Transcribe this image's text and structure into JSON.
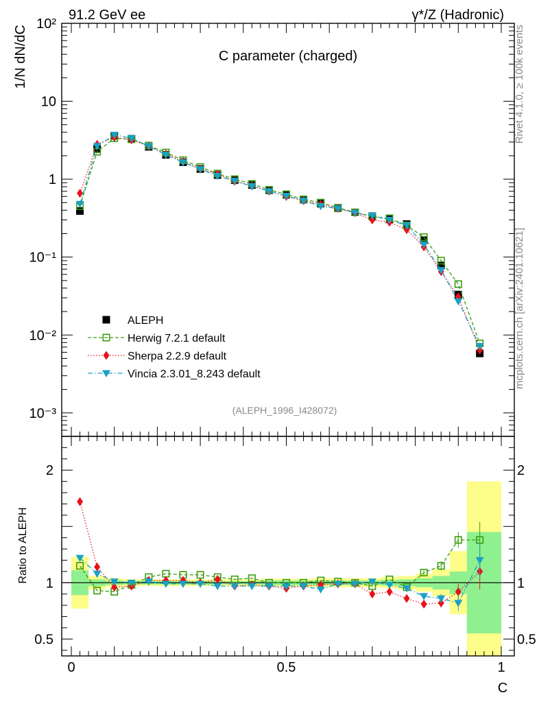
{
  "header": {
    "energy_label": "91.2 GeV ee",
    "process_label": "γ*/Z (Hadronic)"
  },
  "side_labels": {
    "rivet": "Rivet 4.1.0, ≥ 100k events",
    "mcplots": "mcplots.cern.ch [arXiv:2401.10621]"
  },
  "chart_data": {
    "type": "line",
    "title": "C parameter (charged)",
    "analysis_tag": "(ALEPH_1996_I428072)",
    "xlabel": "C",
    "ylabel_main": "1/N  dN/dC",
    "ylabel_ratio": "Ratio to ALEPH",
    "xlim": [
      0,
      1
    ],
    "ylim_main": [
      0.0005,
      100
    ],
    "ylim_ratio": [
      0.35,
      2.3
    ],
    "x_ticks": [
      "0",
      "0.5",
      "1"
    ],
    "y_ticks_main": [
      "10⁻³",
      "10⁻²",
      "10⁻¹",
      "1",
      "10",
      "10²"
    ],
    "y_ticks_main_values": [
      0.001,
      0.01,
      0.1,
      1,
      10,
      100
    ],
    "y_ticks_ratio": [
      "0.5",
      "1",
      "2"
    ],
    "y_ticks_ratio_values": [
      0.5,
      1,
      2
    ],
    "x": [
      0.02,
      0.06,
      0.1,
      0.14,
      0.18,
      0.22,
      0.26,
      0.3,
      0.34,
      0.38,
      0.42,
      0.46,
      0.5,
      0.54,
      0.58,
      0.62,
      0.66,
      0.7,
      0.74,
      0.78,
      0.82,
      0.86,
      0.9,
      0.95
    ],
    "x_edges": [
      0,
      0.04,
      0.08,
      0.12,
      0.16,
      0.2,
      0.24,
      0.28,
      0.32,
      0.36,
      0.4,
      0.44,
      0.48,
      0.52,
      0.56,
      0.6,
      0.64,
      0.68,
      0.72,
      0.76,
      0.8,
      0.84,
      0.88,
      0.92,
      1.0
    ],
    "band_inner": [
      0.11,
      0.03,
      0.02,
      0.015,
      0.015,
      0.015,
      0.015,
      0.015,
      0.015,
      0.015,
      0.015,
      0.02,
      0.02,
      0.02,
      0.02,
      0.02,
      0.02,
      0.02,
      0.025,
      0.03,
      0.04,
      0.06,
      0.1,
      0.45
    ],
    "band_outer": [
      0.23,
      0.06,
      0.04,
      0.03,
      0.03,
      0.03,
      0.03,
      0.03,
      0.03,
      0.03,
      0.03,
      0.035,
      0.035,
      0.035,
      0.04,
      0.04,
      0.04,
      0.04,
      0.05,
      0.06,
      0.08,
      0.12,
      0.28,
      0.9
    ],
    "series": [
      {
        "name": "ALEPH",
        "color": "#000000",
        "marker": "square-filled",
        "values": [
          0.39,
          2.45,
          3.6,
          3.3,
          2.6,
          2.05,
          1.65,
          1.35,
          1.13,
          0.97,
          0.84,
          0.72,
          0.63,
          0.545,
          0.485,
          0.425,
          0.375,
          0.335,
          0.305,
          0.265,
          0.165,
          0.078,
          0.033,
          0.0058
        ]
      },
      {
        "name": "Herwig 7.2.1 default",
        "color": "#3a9c10",
        "marker": "square-open",
        "dash": "5,3",
        "values": [
          0.45,
          2.25,
          3.35,
          3.25,
          2.7,
          2.2,
          1.75,
          1.43,
          1.18,
          1.0,
          0.87,
          0.73,
          0.64,
          0.55,
          0.5,
          0.43,
          0.375,
          0.33,
          0.315,
          0.255,
          0.18,
          0.09,
          0.045,
          0.0078
        ]
      },
      {
        "name": "Sherpa 2.2.9 default",
        "color": "#e8121b",
        "marker": "diamond-filled",
        "dash": "1.5,2.5",
        "values": [
          0.66,
          2.8,
          3.45,
          3.2,
          2.65,
          2.1,
          1.68,
          1.35,
          1.16,
          0.94,
          0.82,
          0.7,
          0.6,
          0.53,
          0.475,
          0.42,
          0.37,
          0.3,
          0.28,
          0.225,
          0.135,
          0.065,
          0.031,
          0.0064
        ]
      },
      {
        "name": "Vincia 2.3.01_8.243 default",
        "color": "#1aa1c4",
        "marker": "triangle-down-filled",
        "dash": "7,3,1.5,3",
        "values": [
          0.48,
          2.65,
          3.7,
          3.35,
          2.65,
          2.05,
          1.64,
          1.34,
          1.1,
          0.95,
          0.81,
          0.7,
          0.61,
          0.53,
          0.45,
          0.42,
          0.37,
          0.34,
          0.3,
          0.255,
          0.145,
          0.068,
          0.027,
          0.0072
        ]
      }
    ],
    "ratio_series": [
      {
        "name": "Herwig 7.2.1 default",
        "values": [
          1.15,
          0.93,
          0.92,
          0.98,
          1.05,
          1.08,
          1.07,
          1.07,
          1.05,
          1.03,
          1.04,
          1.0,
          1.0,
          1.0,
          1.02,
          1.01,
          1.0,
          0.97,
          1.03,
          0.96,
          1.09,
          1.15,
          1.38,
          1.38
        ]
      },
      {
        "name": "Sherpa 2.2.9 default",
        "values": [
          1.72,
          1.14,
          0.96,
          0.97,
          1.02,
          1.02,
          1.02,
          1.0,
          1.03,
          0.97,
          0.98,
          0.97,
          0.95,
          0.97,
          0.98,
          0.99,
          0.99,
          0.9,
          0.92,
          0.86,
          0.81,
          0.82,
          0.92,
          1.1
        ]
      },
      {
        "name": "Vincia 2.3.01_8.243 default",
        "values": [
          1.22,
          1.08,
          1.01,
          1.0,
          1.01,
          0.99,
          0.99,
          0.99,
          0.97,
          0.97,
          0.97,
          0.97,
          0.97,
          0.97,
          0.94,
          0.99,
          0.99,
          1.01,
          0.98,
          0.95,
          0.88,
          0.86,
          0.82,
          1.2
        ]
      }
    ],
    "ratio_errors": [
      0.01,
      0.01,
      0.005,
      0.005,
      0.005,
      0.005,
      0.005,
      0.005,
      0.005,
      0.005,
      0.005,
      0.005,
      0.005,
      0.005,
      0.01,
      0.01,
      0.01,
      0.01,
      0.015,
      0.015,
      0.03,
      0.04,
      0.07,
      0.16
    ]
  }
}
